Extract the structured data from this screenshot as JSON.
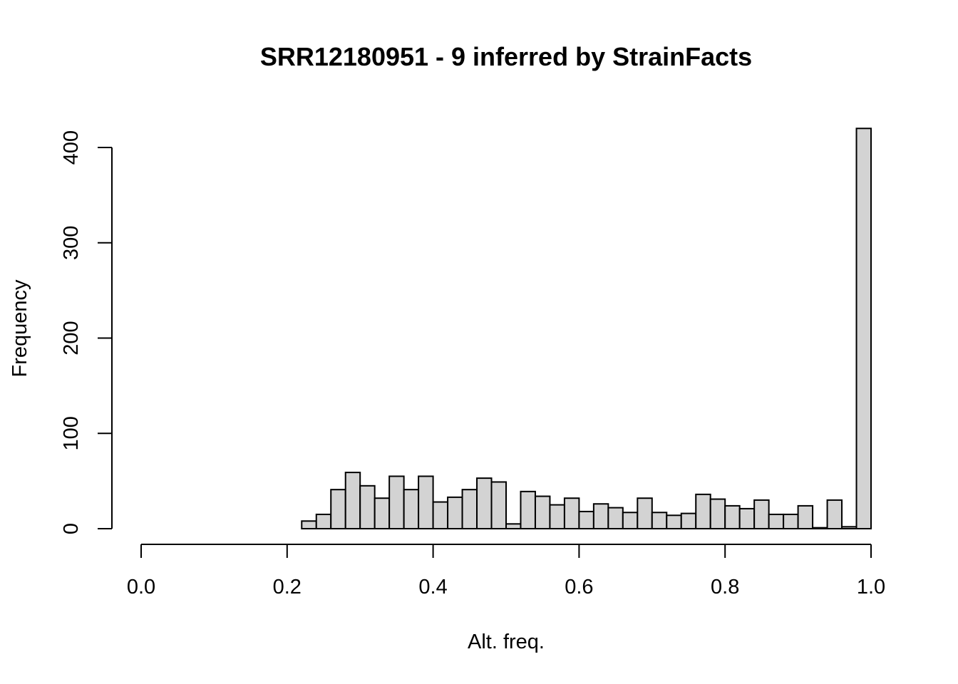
{
  "chart_data": {
    "type": "bar",
    "title": "SRR12180951 - 9 inferred by StrainFacts",
    "xlabel": "Alt. freq.",
    "ylabel": "Frequency",
    "xlim": [
      0.0,
      1.0
    ],
    "ylim": [
      0,
      400
    ],
    "x_ticks": [
      "0.0",
      "0.2",
      "0.4",
      "0.6",
      "0.8",
      "1.0"
    ],
    "y_ticks": [
      "0",
      "100",
      "200",
      "300",
      "400"
    ],
    "bin_width": 0.02,
    "bins_start": [
      0.22,
      0.24,
      0.26,
      0.28,
      0.3,
      0.32,
      0.34,
      0.36,
      0.38,
      0.4,
      0.42,
      0.44,
      0.46,
      0.48,
      0.5,
      0.52,
      0.54,
      0.56,
      0.58,
      0.6,
      0.62,
      0.64,
      0.66,
      0.68,
      0.7,
      0.72,
      0.74,
      0.76,
      0.78,
      0.8,
      0.82,
      0.84,
      0.86,
      0.88,
      0.9,
      0.92,
      0.94,
      0.96,
      0.98
    ],
    "values": [
      8,
      15,
      41,
      59,
      45,
      32,
      55,
      41,
      55,
      28,
      33,
      41,
      53,
      49,
      5,
      39,
      34,
      25,
      32,
      18,
      26,
      22,
      17,
      32,
      17,
      14,
      16,
      36,
      31,
      24,
      21,
      30,
      15,
      15,
      24,
      1,
      30,
      2,
      420
    ],
    "grid": false,
    "bar_color": "#d3d3d3",
    "edge_color": "#000000"
  }
}
